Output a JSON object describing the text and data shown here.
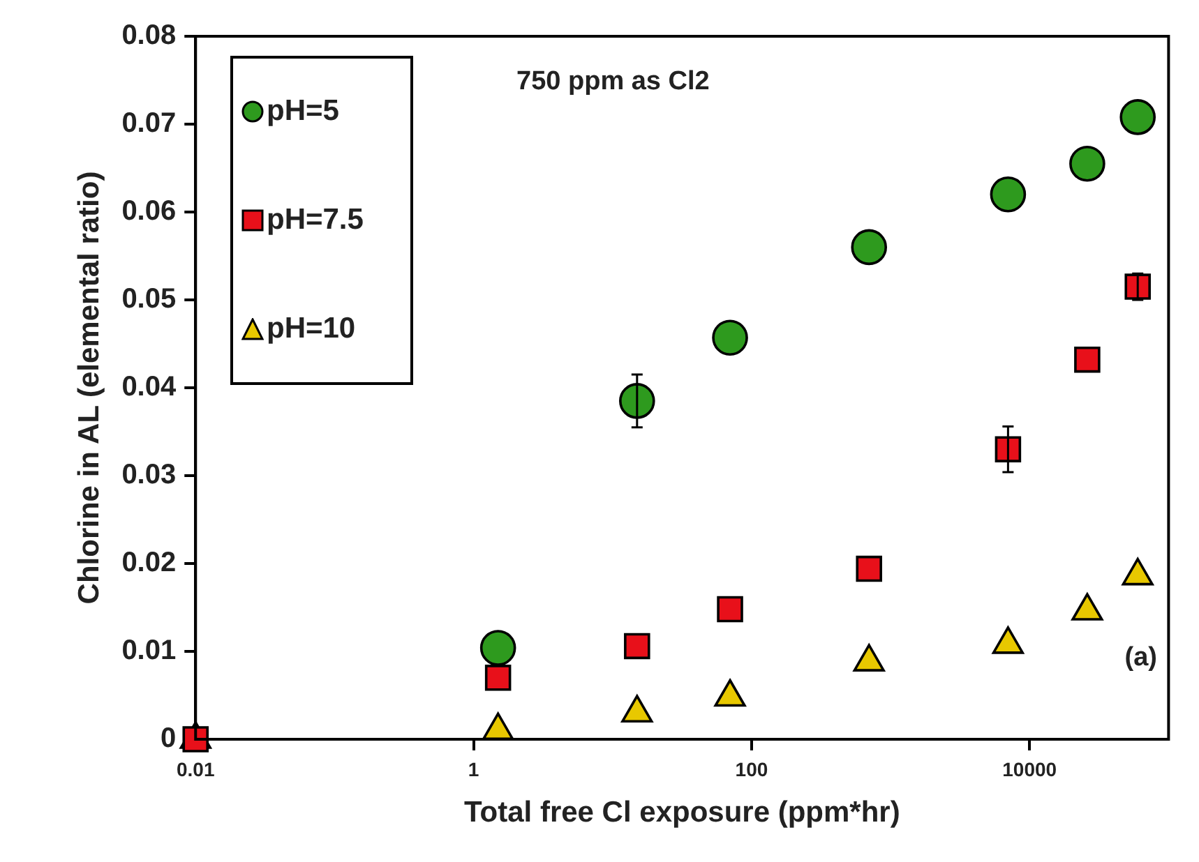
{
  "chart_data": {
    "type": "scatter",
    "xlabel": "Total free Cl exposure (ppm*hr)",
    "ylabel": "Chlorine in AL (elemental ratio)",
    "annotations": [
      "750 ppm as Cl2",
      "(a)"
    ],
    "log": "x",
    "xlim": [
      0.01,
      100000
    ],
    "xticks": [
      0.01,
      1,
      100,
      10000
    ],
    "ylim": [
      0,
      0.08
    ],
    "yticks": [
      0,
      0.01,
      0.02,
      0.03,
      0.04,
      0.05,
      0.06,
      0.07,
      0.08
    ],
    "grid": false,
    "legend": "top left",
    "x": [
      0.01,
      1.5,
      15,
      70,
      700,
      7000,
      26000,
      60000
    ],
    "series": [
      {
        "name": "pH=5",
        "color": "#2e9a1e",
        "marker": "circle",
        "values": [
          null,
          0.0104,
          0.0385,
          0.0457,
          0.056,
          0.062,
          0.0655,
          0.0708
        ],
        "errors": [
          null,
          null,
          0.003,
          null,
          null,
          null,
          null,
          null
        ]
      },
      {
        "name": "pH=7.5",
        "color": "#e8101a",
        "marker": "square",
        "values": [
          0,
          0.007,
          0.0106,
          0.0148,
          0.0194,
          0.033,
          0.0432,
          0.0515
        ],
        "errors": [
          null,
          null,
          null,
          null,
          null,
          0.0026,
          null,
          0.0015
        ]
      },
      {
        "name": "pH=10",
        "color": "#e8c800",
        "marker": "triangle",
        "values": [
          0,
          0.001,
          0.003,
          0.0048,
          0.0088,
          0.0108,
          0.0146,
          0.0186
        ]
      }
    ]
  }
}
